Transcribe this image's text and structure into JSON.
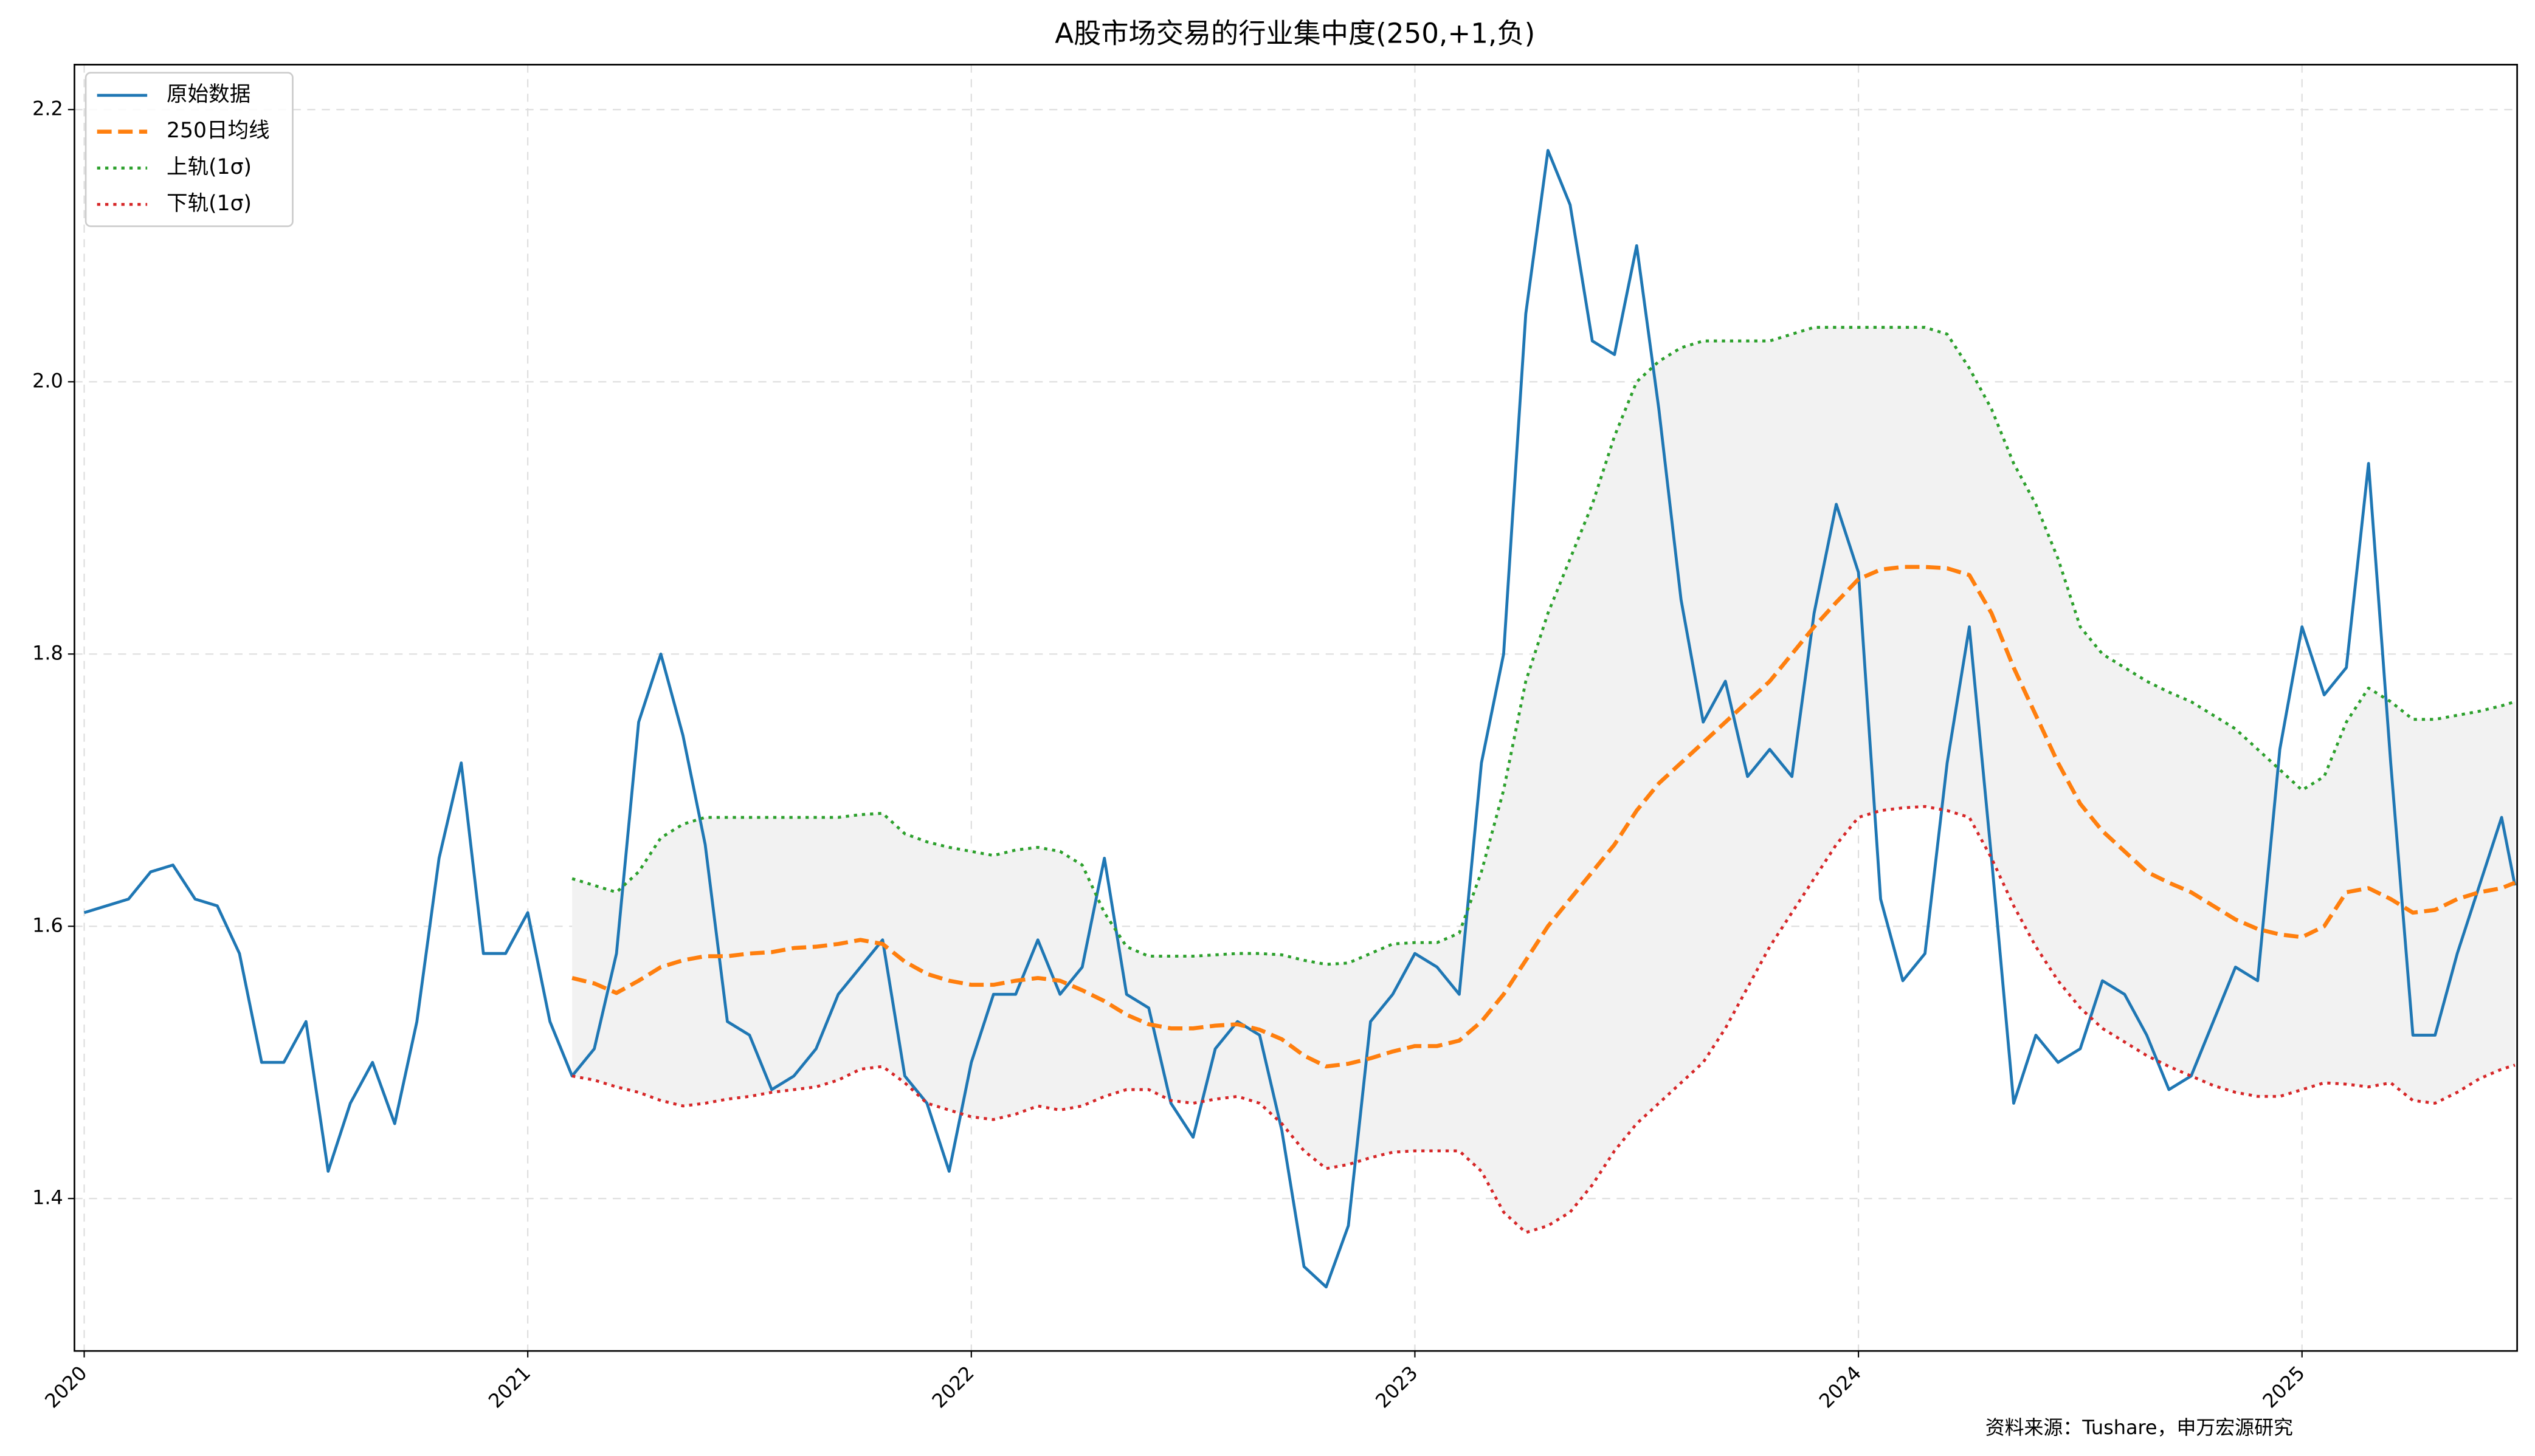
{
  "chart_data": {
    "type": "line",
    "title": "A股市场交易的行业集中度(250,+1,负)",
    "source": "资料来源：Tushare，申万宏源研究",
    "x": [
      2020,
      2020.05,
      2020.1,
      2020.15,
      2020.2,
      2020.25,
      2020.3,
      2020.35,
      2020.4,
      2020.45,
      2020.5,
      2020.55,
      2020.6,
      2020.65,
      2020.7,
      2020.75,
      2020.8,
      2020.85,
      2020.9,
      2020.95,
      2021,
      2021.05,
      2021.1,
      2021.15,
      2021.2,
      2021.25,
      2021.3,
      2021.35,
      2021.4,
      2021.45,
      2021.5,
      2021.55,
      2021.6,
      2021.65,
      2021.7,
      2021.75,
      2021.8,
      2021.85,
      2021.9,
      2021.95,
      2022,
      2022.05,
      2022.1,
      2022.15,
      2022.2,
      2022.25,
      2022.3,
      2022.35,
      2022.4,
      2022.45,
      2022.5,
      2022.55,
      2022.6,
      2022.65,
      2022.7,
      2022.75,
      2022.8,
      2022.85,
      2022.9,
      2022.95,
      2023,
      2023.05,
      2023.1,
      2023.15,
      2023.2,
      2023.25,
      2023.3,
      2023.35,
      2023.4,
      2023.45,
      2023.5,
      2023.55,
      2023.6,
      2023.65,
      2023.7,
      2023.75,
      2023.8,
      2023.85,
      2023.9,
      2023.95,
      2024,
      2024.05,
      2024.1,
      2024.15,
      2024.2,
      2024.25,
      2024.3,
      2024.35,
      2024.4,
      2024.45,
      2024.5,
      2024.55,
      2024.6,
      2024.65,
      2024.7,
      2024.75,
      2024.8,
      2024.85,
      2024.9,
      2024.95,
      2025,
      2025.05,
      2025.1,
      2025.15,
      2025.2,
      2025.25,
      2025.3,
      2025.35,
      2025.4,
      2025.45,
      2025.48
    ],
    "series": [
      {
        "name": "原始数据",
        "color": "#1f77b4",
        "style": "solid",
        "values": [
          1.61,
          1.615,
          1.62,
          1.64,
          1.645,
          1.62,
          1.615,
          1.58,
          1.5,
          1.5,
          1.53,
          1.42,
          1.47,
          1.5,
          1.455,
          1.53,
          1.65,
          1.72,
          1.58,
          1.58,
          1.61,
          1.53,
          1.49,
          1.51,
          1.58,
          1.75,
          1.8,
          1.74,
          1.66,
          1.53,
          1.52,
          1.48,
          1.49,
          1.51,
          1.55,
          1.57,
          1.59,
          1.49,
          1.47,
          1.42,
          1.5,
          1.55,
          1.55,
          1.59,
          1.55,
          1.57,
          1.65,
          1.55,
          1.54,
          1.47,
          1.445,
          1.51,
          1.53,
          1.52,
          1.45,
          1.35,
          1.335,
          1.38,
          1.53,
          1.55,
          1.58,
          1.57,
          1.55,
          1.72,
          1.8,
          2.05,
          2.17,
          2.13,
          2.03,
          2.02,
          2.1,
          1.98,
          1.84,
          1.75,
          1.78,
          1.71,
          1.73,
          1.71,
          1.83,
          1.91,
          1.86,
          1.62,
          1.56,
          1.58,
          1.72,
          1.82,
          1.65,
          1.47,
          1.52,
          1.5,
          1.51,
          1.56,
          1.55,
          1.52,
          1.48,
          1.49,
          1.53,
          1.57,
          1.56,
          1.73,
          1.82,
          1.77,
          1.79,
          1.94,
          1.72,
          1.52,
          1.52,
          1.58,
          1.63,
          1.68,
          1.63
        ]
      },
      {
        "name": "250日均线",
        "color": "#ff7f0e",
        "style": "dashed",
        "values": [
          null,
          null,
          null,
          null,
          null,
          null,
          null,
          null,
          null,
          null,
          null,
          null,
          null,
          null,
          null,
          null,
          null,
          null,
          null,
          null,
          null,
          null,
          1.562,
          1.558,
          1.551,
          1.56,
          1.57,
          1.575,
          1.578,
          1.578,
          1.58,
          1.581,
          1.584,
          1.585,
          1.587,
          1.59,
          1.587,
          1.574,
          1.565,
          1.56,
          1.557,
          1.557,
          1.56,
          1.562,
          1.56,
          1.553,
          1.545,
          1.535,
          1.528,
          1.525,
          1.525,
          1.527,
          1.528,
          1.524,
          1.517,
          1.505,
          1.497,
          1.499,
          1.503,
          1.508,
          1.512,
          1.512,
          1.516,
          1.53,
          1.55,
          1.575,
          1.6,
          1.62,
          1.64,
          1.66,
          1.685,
          1.705,
          1.72,
          1.735,
          1.75,
          1.765,
          1.78,
          1.8,
          1.82,
          1.838,
          1.855,
          1.862,
          1.864,
          1.864,
          1.863,
          1.858,
          1.83,
          1.79,
          1.755,
          1.72,
          1.69,
          1.67,
          1.655,
          1.64,
          1.632,
          1.625,
          1.615,
          1.605,
          1.598,
          1.594,
          1.592,
          1.6,
          1.625,
          1.628,
          1.62,
          1.61,
          1.612,
          1.62,
          1.625,
          1.628,
          1.632
        ]
      },
      {
        "name": "上轨(1σ)",
        "color": "#2ca02c",
        "style": "dotted",
        "values": [
          null,
          null,
          null,
          null,
          null,
          null,
          null,
          null,
          null,
          null,
          null,
          null,
          null,
          null,
          null,
          null,
          null,
          null,
          null,
          null,
          null,
          null,
          1.635,
          1.63,
          1.625,
          1.64,
          1.665,
          1.675,
          1.68,
          1.68,
          1.68,
          1.68,
          1.68,
          1.68,
          1.68,
          1.682,
          1.683,
          1.668,
          1.662,
          1.658,
          1.655,
          1.652,
          1.656,
          1.658,
          1.655,
          1.645,
          1.61,
          1.585,
          1.578,
          1.578,
          1.578,
          1.579,
          1.58,
          1.58,
          1.579,
          1.575,
          1.572,
          1.573,
          1.58,
          1.587,
          1.588,
          1.588,
          1.595,
          1.64,
          1.7,
          1.78,
          1.83,
          1.87,
          1.91,
          1.96,
          2.0,
          2.015,
          2.025,
          2.03,
          2.03,
          2.03,
          2.03,
          2.035,
          2.04,
          2.04,
          2.04,
          2.04,
          2.04,
          2.04,
          2.035,
          2.01,
          1.98,
          1.94,
          1.91,
          1.87,
          1.82,
          1.8,
          1.79,
          1.78,
          1.772,
          1.765,
          1.755,
          1.745,
          1.73,
          1.715,
          1.7,
          1.71,
          1.75,
          1.775,
          1.765,
          1.752,
          1.752,
          1.755,
          1.758,
          1.762,
          1.765
        ]
      },
      {
        "name": "下轨(1σ)",
        "color": "#d62728",
        "style": "dotted",
        "values": [
          null,
          null,
          null,
          null,
          null,
          null,
          null,
          null,
          null,
          null,
          null,
          null,
          null,
          null,
          null,
          null,
          null,
          null,
          null,
          null,
          null,
          null,
          1.49,
          1.487,
          1.482,
          1.478,
          1.472,
          1.468,
          1.47,
          1.473,
          1.475,
          1.478,
          1.48,
          1.482,
          1.487,
          1.495,
          1.497,
          1.485,
          1.47,
          1.465,
          1.46,
          1.458,
          1.462,
          1.468,
          1.465,
          1.468,
          1.475,
          1.48,
          1.48,
          1.472,
          1.47,
          1.473,
          1.475,
          1.47,
          1.455,
          1.435,
          1.422,
          1.425,
          1.43,
          1.434,
          1.435,
          1.435,
          1.435,
          1.42,
          1.39,
          1.375,
          1.38,
          1.39,
          1.41,
          1.435,
          1.455,
          1.47,
          1.485,
          1.5,
          1.525,
          1.555,
          1.585,
          1.61,
          1.635,
          1.66,
          1.68,
          1.685,
          1.687,
          1.688,
          1.685,
          1.68,
          1.65,
          1.615,
          1.585,
          1.56,
          1.54,
          1.525,
          1.515,
          1.505,
          1.497,
          1.49,
          1.483,
          1.478,
          1.475,
          1.475,
          1.48,
          1.485,
          1.484,
          1.482,
          1.485,
          1.472,
          1.47,
          1.478,
          1.488,
          1.495,
          1.498
        ]
      }
    ],
    "band_color": "#f2f2f2",
    "xlim": [
      2019.978,
      2025.485
    ],
    "ylim": [
      1.288,
      2.233
    ],
    "xticks": [
      2020,
      2021,
      2022,
      2023,
      2024,
      2025
    ],
    "yticks": [
      1.4,
      1.6,
      1.8,
      {
        "value": 2,
        "label": "2.0"
      },
      2.2
    ],
    "grid": true,
    "legend": "upper left"
  }
}
